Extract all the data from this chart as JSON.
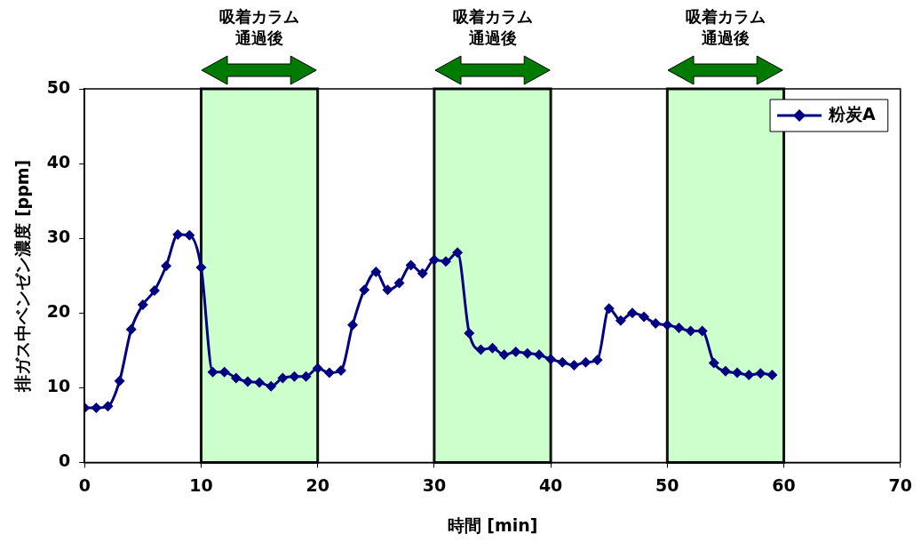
{
  "chart_data": {
    "type": "line",
    "xlabel": "時間 [min]",
    "ylabel": "排ガス中ベンゼン濃度 [ppm]",
    "x": [
      0,
      1,
      2,
      3,
      4,
      5,
      6,
      7,
      8,
      9,
      10,
      11,
      12,
      13,
      14,
      15,
      16,
      17,
      18,
      19,
      20,
      21,
      22,
      23,
      24,
      25,
      26,
      27,
      28,
      29,
      30,
      31,
      32,
      33,
      34,
      35,
      36,
      37,
      38,
      39,
      40,
      41,
      42,
      43,
      44,
      45,
      46,
      47,
      48,
      49,
      50,
      51,
      52,
      53,
      54,
      55,
      56,
      57,
      58,
      59
    ],
    "series": [
      {
        "name": "粉炭A",
        "color": "#000080",
        "values": [
          7.3,
          7.3,
          7.5,
          10.9,
          17.8,
          21.1,
          23.0,
          26.3,
          30.5,
          30.4,
          26.1,
          12.1,
          12.1,
          11.3,
          10.8,
          10.7,
          10.2,
          11.3,
          11.5,
          11.5,
          12.6,
          12.0,
          12.3,
          18.4,
          23.1,
          25.5,
          23.1,
          24.0,
          26.4,
          25.3,
          27.1,
          26.9,
          28.1,
          17.3,
          15.1,
          15.3,
          14.4,
          14.8,
          14.6,
          14.4,
          13.8,
          13.4,
          13.0,
          13.4,
          13.7,
          20.6,
          19.0,
          20.0,
          19.5,
          18.6,
          18.4,
          18.0,
          17.6,
          17.6,
          13.3,
          12.2,
          12.0,
          11.7,
          11.9,
          11.7
        ]
      }
    ],
    "xlim": [
      0,
      70
    ],
    "xticks": [
      0,
      10,
      20,
      30,
      40,
      50,
      60,
      70
    ],
    "ylim": [
      0,
      50
    ],
    "yticks": [
      0,
      10,
      20,
      30,
      40,
      50
    ],
    "bands": [
      {
        "axis": "x",
        "from": 10,
        "to": 20,
        "label": "吸着カラム通過後",
        "color": "#ccffcc"
      },
      {
        "axis": "x",
        "from": 30,
        "to": 40,
        "label": "吸着カラム通過後",
        "color": "#ccffcc"
      },
      {
        "axis": "x",
        "from": 50,
        "to": 60,
        "label": "吸着カラム通過後",
        "color": "#ccffcc"
      }
    ],
    "grid": false,
    "legend": "top right",
    "marker": "diamond",
    "line_style": "solid"
  }
}
